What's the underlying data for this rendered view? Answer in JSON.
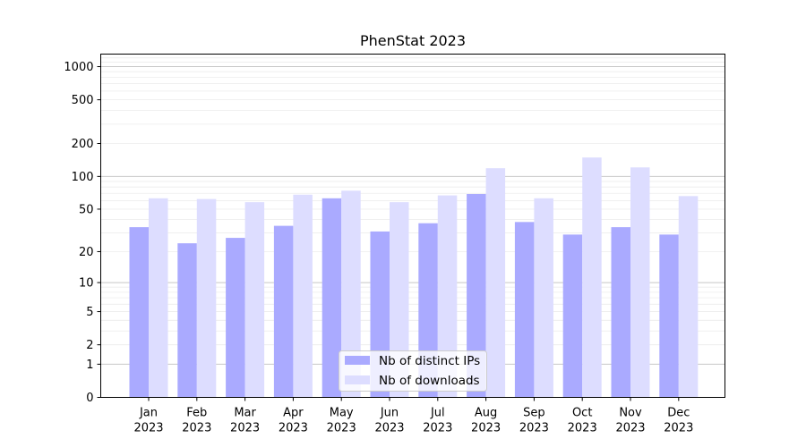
{
  "chart_data": {
    "type": "bar",
    "title": "PhenStat 2023",
    "categories": [
      [
        "Jan",
        "2023"
      ],
      [
        "Feb",
        "2023"
      ],
      [
        "Mar",
        "2023"
      ],
      [
        "Apr",
        "2023"
      ],
      [
        "May",
        "2023"
      ],
      [
        "Jun",
        "2023"
      ],
      [
        "Jul",
        "2023"
      ],
      [
        "Aug",
        "2023"
      ],
      [
        "Sep",
        "2023"
      ],
      [
        "Oct",
        "2023"
      ],
      [
        "Nov",
        "2023"
      ],
      [
        "Dec",
        "2023"
      ]
    ],
    "series": [
      {
        "name": "Nb of distinct IPs",
        "color": "#aaaaff",
        "values": [
          34,
          24,
          27,
          35,
          63,
          31,
          37,
          69,
          38,
          29,
          34,
          29
        ]
      },
      {
        "name": "Nb of downloads",
        "color": "#ddddff",
        "values": [
          63,
          62,
          58,
          68,
          74,
          58,
          67,
          119,
          63,
          149,
          121,
          66
        ]
      }
    ],
    "yscale": "log(1+y)",
    "ylim": [
      0,
      1300
    ],
    "yticks": [
      0,
      1,
      2,
      5,
      10,
      20,
      50,
      100,
      200,
      500,
      1000
    ],
    "grid": true,
    "legend_position": "lower-center"
  }
}
